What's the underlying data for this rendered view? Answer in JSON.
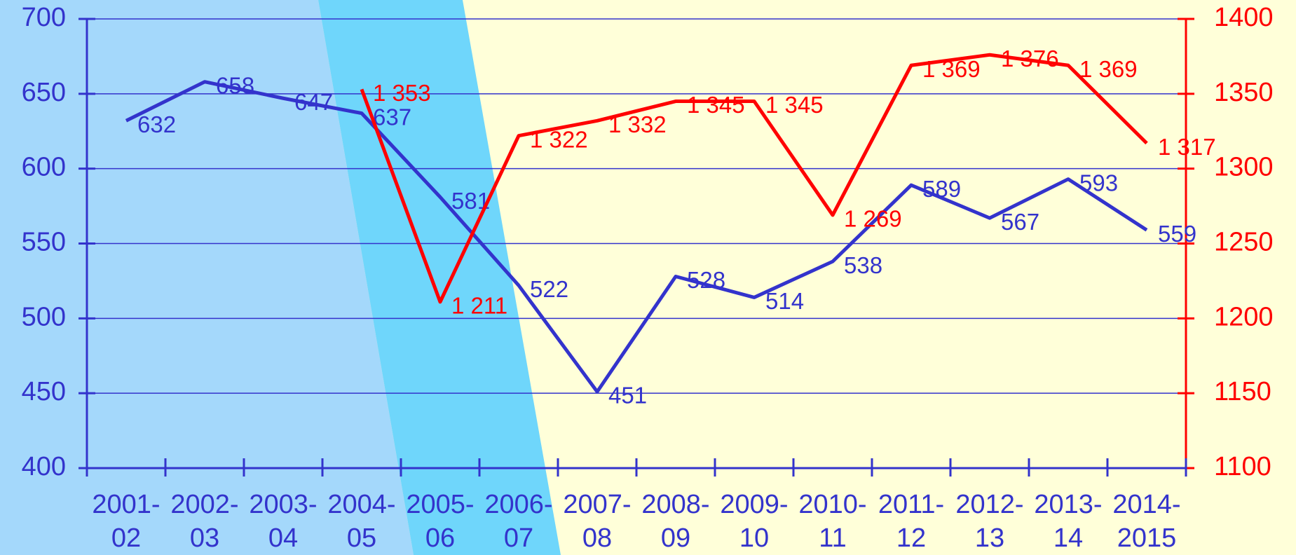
{
  "chart_data": {
    "type": "line",
    "categories": [
      "2001-02",
      "2002-03",
      "2003-04",
      "2004-05",
      "2005-06",
      "2006-07",
      "2007-08",
      "2008-09",
      "2009-10",
      "2010-11",
      "2011-12",
      "2012-13",
      "2013-14",
      "2014-2015"
    ],
    "series": [
      {
        "color": "#3333cc",
        "values": [
          632,
          658,
          647,
          637,
          581,
          522,
          451,
          528,
          514,
          538,
          589,
          567,
          593,
          559
        ]
      },
      {
        "color": "#ff0000",
        "axis": "y2",
        "values": [
          null,
          null,
          null,
          1353,
          1211,
          1322,
          1332,
          1345,
          1345,
          1269,
          1369,
          1376,
          1369,
          1317
        ],
        "value_labels": [
          null,
          null,
          null,
          "1 353",
          "1 211",
          "1 322",
          "1 332",
          "1 345",
          "1 345",
          "1 269",
          "1 369",
          "1 376",
          "1 369",
          "1 317"
        ]
      }
    ],
    "ylim": [
      400,
      700
    ],
    "yticks": [
      400,
      450,
      500,
      550,
      600,
      650,
      700
    ],
    "y2lim": [
      1100,
      1400
    ],
    "y2ticks": [
      1100,
      1150,
      1200,
      1250,
      1300,
      1350,
      1400
    ],
    "grid": true
  }
}
